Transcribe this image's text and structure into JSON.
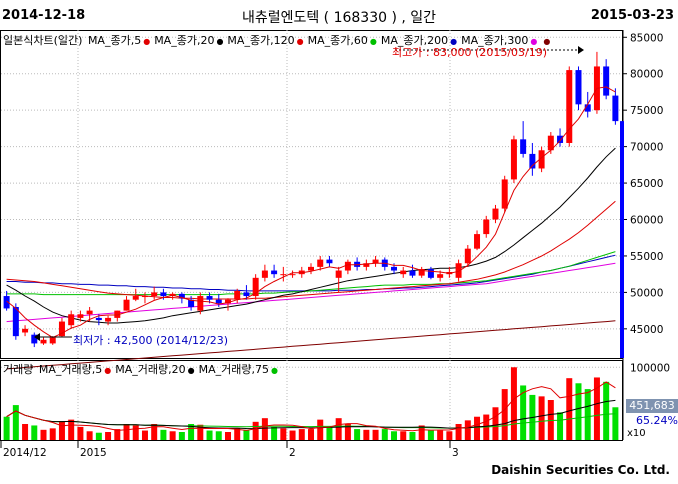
{
  "header": {
    "start_date": "2014-12-18",
    "title": "내츄럴엔도텍 ( 168330 ) , 일간",
    "end_date": "2015-03-23"
  },
  "price_legend": {
    "label": "일본식차트(일간)",
    "items": [
      {
        "label": "MA_종가,5",
        "color": "#e00000"
      },
      {
        "label": "MA_종가,20",
        "color": "#000000"
      },
      {
        "label": "MA_종가,120",
        "color": "#e00000"
      },
      {
        "label": "MA_종가,60",
        "color": "#00c000"
      },
      {
        "label": "MA_종가,200",
        "color": "#0000c0"
      },
      {
        "label": "MA_종가,300",
        "color": "#e000e0"
      },
      {
        "label": "",
        "color": "#800000"
      }
    ]
  },
  "volume_legend": {
    "label": "거래량",
    "items": [
      {
        "label": "MA_거래량,5",
        "color": "#e00000"
      },
      {
        "label": "MA_거래량,20",
        "color": "#000000"
      },
      {
        "label": "MA_거래량,75",
        "color": "#00c000"
      }
    ]
  },
  "annotations": {
    "high": "최고가 : 83,000 (2015/03/19)",
    "low": "최저가 : 42,500 (2014/12/23)"
  },
  "volume_readout": {
    "value": "451,683",
    "percent": "65.24%",
    "unit": "x10"
  },
  "footer": "Daishin Securities Co. Ltd.",
  "colors": {
    "up": "#ff0000",
    "down": "#0000ff",
    "vol_up": "#ff0000",
    "vol_down": "#00e000",
    "axis_bar": "#0000ff"
  },
  "chart_data": {
    "type": "candlestick",
    "x_ticks": [
      "2014/12",
      "2015",
      "2",
      "3"
    ],
    "y_ticks": [
      45000,
      50000,
      55000,
      60000,
      65000,
      70000,
      75000,
      80000,
      85000
    ],
    "ylim": [
      41000,
      86000
    ],
    "volume_ticks": [
      100000
    ],
    "volume_max": 110000,
    "candles": [
      {
        "o": 49500,
        "h": 50200,
        "l": 47500,
        "c": 47800,
        "v": 32000
      },
      {
        "o": 48000,
        "h": 48500,
        "l": 43500,
        "c": 44000,
        "v": 48000
      },
      {
        "o": 44500,
        "h": 45500,
        "l": 44000,
        "c": 45000,
        "v": 22000
      },
      {
        "o": 44200,
        "h": 44500,
        "l": 42500,
        "c": 43000,
        "v": 20000
      },
      {
        "o": 43000,
        "h": 43800,
        "l": 42800,
        "c": 43500,
        "v": 14000
      },
      {
        "o": 43000,
        "h": 44000,
        "l": 42800,
        "c": 43800,
        "v": 16000
      },
      {
        "o": 44000,
        "h": 46500,
        "l": 43900,
        "c": 46000,
        "v": 25000
      },
      {
        "o": 45500,
        "h": 47500,
        "l": 45000,
        "c": 47000,
        "v": 28000
      },
      {
        "o": 46500,
        "h": 47500,
        "l": 46000,
        "c": 47000,
        "v": 18000
      },
      {
        "o": 47000,
        "h": 48000,
        "l": 46000,
        "c": 47500,
        "v": 12000
      },
      {
        "o": 46500,
        "h": 47000,
        "l": 45500,
        "c": 46200,
        "v": 10000
      },
      {
        "o": 46000,
        "h": 46800,
        "l": 45500,
        "c": 46500,
        "v": 11000
      },
      {
        "o": 46500,
        "h": 47500,
        "l": 46000,
        "c": 47500,
        "v": 15000
      },
      {
        "o": 47500,
        "h": 49500,
        "l": 47500,
        "c": 49000,
        "v": 22000
      },
      {
        "o": 49000,
        "h": 50500,
        "l": 48800,
        "c": 49500,
        "v": 20000
      },
      {
        "o": 49500,
        "h": 50000,
        "l": 48500,
        "c": 49500,
        "v": 13000
      },
      {
        "o": 49500,
        "h": 50800,
        "l": 49000,
        "c": 50000,
        "v": 22000
      },
      {
        "o": 50000,
        "h": 50500,
        "l": 49000,
        "c": 49500,
        "v": 14000
      },
      {
        "o": 49500,
        "h": 50000,
        "l": 49000,
        "c": 49800,
        "v": 12000
      },
      {
        "o": 49800,
        "h": 50000,
        "l": 48500,
        "c": 49200,
        "v": 11000
      },
      {
        "o": 49000,
        "h": 49500,
        "l": 47500,
        "c": 48000,
        "v": 22000
      },
      {
        "o": 47500,
        "h": 50000,
        "l": 47000,
        "c": 49500,
        "v": 21000
      },
      {
        "o": 49500,
        "h": 50000,
        "l": 48500,
        "c": 49000,
        "v": 13000
      },
      {
        "o": 49000,
        "h": 49800,
        "l": 48000,
        "c": 48500,
        "v": 12000
      },
      {
        "o": 48500,
        "h": 49200,
        "l": 47500,
        "c": 49000,
        "v": 11000
      },
      {
        "o": 49000,
        "h": 50500,
        "l": 48500,
        "c": 50200,
        "v": 16000
      },
      {
        "o": 50000,
        "h": 51000,
        "l": 49000,
        "c": 49500,
        "v": 14000
      },
      {
        "o": 49500,
        "h": 52500,
        "l": 49000,
        "c": 52000,
        "v": 25000
      },
      {
        "o": 52000,
        "h": 53800,
        "l": 51500,
        "c": 53000,
        "v": 30000
      },
      {
        "o": 53000,
        "h": 53800,
        "l": 52000,
        "c": 52500,
        "v": 18000
      },
      {
        "o": 52500,
        "h": 53500,
        "l": 51500,
        "c": 52500,
        "v": 16000
      },
      {
        "o": 52500,
        "h": 53000,
        "l": 52000,
        "c": 52500,
        "v": 13000
      },
      {
        "o": 52500,
        "h": 53500,
        "l": 52000,
        "c": 53000,
        "v": 15000
      },
      {
        "o": 53000,
        "h": 54000,
        "l": 52500,
        "c": 53500,
        "v": 15000
      },
      {
        "o": 53500,
        "h": 55000,
        "l": 53000,
        "c": 54500,
        "v": 28000
      },
      {
        "o": 54500,
        "h": 55000,
        "l": 53500,
        "c": 54000,
        "v": 18000
      },
      {
        "o": 52000,
        "h": 53500,
        "l": 50000,
        "c": 53000,
        "v": 30000
      },
      {
        "o": 53000,
        "h": 54500,
        "l": 52500,
        "c": 54200,
        "v": 22000
      },
      {
        "o": 54200,
        "h": 54800,
        "l": 53000,
        "c": 53500,
        "v": 15000
      },
      {
        "o": 53500,
        "h": 54500,
        "l": 53000,
        "c": 54000,
        "v": 14000
      },
      {
        "o": 54000,
        "h": 55000,
        "l": 53500,
        "c": 54500,
        "v": 14000
      },
      {
        "o": 54500,
        "h": 54800,
        "l": 53000,
        "c": 53500,
        "v": 15000
      },
      {
        "o": 53500,
        "h": 54000,
        "l": 52500,
        "c": 53000,
        "v": 12000
      },
      {
        "o": 52500,
        "h": 53500,
        "l": 52000,
        "c": 53000,
        "v": 12000
      },
      {
        "o": 53000,
        "h": 53800,
        "l": 52000,
        "c": 52300,
        "v": 11000
      },
      {
        "o": 52300,
        "h": 53500,
        "l": 52000,
        "c": 53200,
        "v": 20000
      },
      {
        "o": 53200,
        "h": 53500,
        "l": 51800,
        "c": 52000,
        "v": 13000
      },
      {
        "o": 52000,
        "h": 53000,
        "l": 51500,
        "c": 52500,
        "v": 13000
      },
      {
        "o": 52500,
        "h": 53500,
        "l": 52000,
        "c": 52800,
        "v": 12000
      },
      {
        "o": 52000,
        "h": 54500,
        "l": 51500,
        "c": 54000,
        "v": 22000
      },
      {
        "o": 54000,
        "h": 56500,
        "l": 53500,
        "c": 56000,
        "v": 27000
      },
      {
        "o": 56000,
        "h": 58500,
        "l": 55800,
        "c": 58000,
        "v": 32000
      },
      {
        "o": 58000,
        "h": 60500,
        "l": 57500,
        "c": 60000,
        "v": 35000
      },
      {
        "o": 60000,
        "h": 62000,
        "l": 59500,
        "c": 61500,
        "v": 45000
      },
      {
        "o": 61500,
        "h": 66000,
        "l": 61000,
        "c": 65500,
        "v": 70000
      },
      {
        "o": 65500,
        "h": 71500,
        "l": 65000,
        "c": 71000,
        "v": 100000
      },
      {
        "o": 71000,
        "h": 73500,
        "l": 68500,
        "c": 69000,
        "v": 75000
      },
      {
        "o": 69000,
        "h": 70500,
        "l": 66000,
        "c": 67000,
        "v": 62000
      },
      {
        "o": 67000,
        "h": 70000,
        "l": 66500,
        "c": 69500,
        "v": 60000
      },
      {
        "o": 69500,
        "h": 72000,
        "l": 69000,
        "c": 71500,
        "v": 55000
      },
      {
        "o": 71500,
        "h": 72500,
        "l": 70000,
        "c": 70500,
        "v": 38000
      },
      {
        "o": 70500,
        "h": 81000,
        "l": 70000,
        "c": 80500,
        "v": 85000
      },
      {
        "o": 80500,
        "h": 81000,
        "l": 75000,
        "c": 75800,
        "v": 78000
      },
      {
        "o": 75800,
        "h": 77500,
        "l": 74000,
        "c": 74800,
        "v": 70000
      },
      {
        "o": 75000,
        "h": 83000,
        "l": 74500,
        "c": 81000,
        "v": 86000
      },
      {
        "o": 81000,
        "h": 82000,
        "l": 76500,
        "c": 77000,
        "v": 80000
      },
      {
        "o": 77000,
        "h": 78000,
        "l": 73000,
        "c": 73500,
        "v": 45000
      }
    ],
    "ma5": [
      48800,
      47800,
      46500,
      45500,
      44600,
      43800,
      44400,
      45100,
      45500,
      46300,
      46800,
      46900,
      46900,
      47300,
      47700,
      48300,
      48900,
      49300,
      49600,
      49300,
      48900,
      48800,
      48700,
      48400,
      48600,
      49000,
      49200,
      49900,
      50800,
      51500,
      52100,
      52700,
      52700,
      52900,
      53200,
      53500,
      53300,
      53800,
      53800,
      53900,
      54000,
      54000,
      53700,
      53700,
      53400,
      53000,
      52900,
      52800,
      52600,
      52900,
      53700,
      54900,
      56200,
      58000,
      61000,
      64000,
      65900,
      67400,
      68500,
      69500,
      70800,
      72400,
      73800,
      75800,
      78000,
      78200,
      77500
    ],
    "ma20": [
      51000,
      50300,
      49500,
      48800,
      48000,
      47300,
      46800,
      46500,
      46200,
      46000,
      45900,
      45800,
      45800,
      45900,
      46000,
      46100,
      46300,
      46500,
      46800,
      47000,
      47200,
      47400,
      47600,
      47800,
      48000,
      48200,
      48400,
      48700,
      49000,
      49300,
      49600,
      49800,
      50100,
      50400,
      50700,
      51000,
      51300,
      51600,
      51800,
      52000,
      52200,
      52400,
      52600,
      52800,
      53000,
      53100,
      53200,
      53300,
      53300,
      53400,
      53600,
      53900,
      54300,
      54800,
      55600,
      56500,
      57500,
      58500,
      59500,
      60600,
      61700,
      63000,
      64300,
      65700,
      67200,
      68600,
      69800
    ],
    "ma60": [
      49800,
      49800,
      49800,
      49800,
      49700,
      49700,
      49700,
      49700,
      49700,
      49700,
      49700,
      49700,
      49700,
      49700,
      49700,
      49700,
      49700,
      49700,
      49700,
      49700,
      49700,
      49700,
      49700,
      49700,
      49800,
      49800,
      49800,
      49800,
      49900,
      49900,
      50000,
      50100,
      50100,
      50200,
      50300,
      50400,
      50500,
      50600,
      50700,
      50800,
      50900,
      51000,
      51000,
      51000,
      51100,
      51100,
      51100,
      51200,
      51200,
      51300,
      51400,
      51500,
      51600,
      51800,
      52000,
      52200,
      52400,
      52600,
      52800,
      53000,
      53300,
      53600,
      54000,
      54400,
      54800,
      55200,
      55600
    ],
    "ma120": [
      51800,
      51700,
      51600,
      51500,
      51300,
      51100,
      50900,
      50700,
      50500,
      50300,
      50100,
      49900,
      49800,
      49700,
      49600,
      49500,
      49400,
      49300,
      49300,
      49200,
      49200,
      49100,
      49100,
      49100,
      49100,
      49100,
      49100,
      49200,
      49200,
      49300,
      49400,
      49500,
      49600,
      49700,
      49800,
      49900,
      50000,
      50100,
      50200,
      50300,
      50400,
      50500,
      50600,
      50700,
      50800,
      50900,
      51000,
      51100,
      51200,
      51400,
      51600,
      51800,
      52100,
      52400,
      52800,
      53300,
      53800,
      54400,
      55000,
      55700,
      56500,
      57300,
      58200,
      59200,
      60300,
      61400,
      62500
    ],
    "ma200": [
      51500,
      51500,
      51400,
      51400,
      51300,
      51300,
      51200,
      51200,
      51100,
      51100,
      51000,
      51000,
      50900,
      50900,
      50800,
      50800,
      50700,
      50700,
      50600,
      50600,
      50500,
      50500,
      50400,
      50400,
      50300,
      50300,
      50200,
      50200,
      50200,
      50200,
      50200,
      50200,
      50200,
      50200,
      50200,
      50200,
      50300,
      50300,
      50300,
      50400,
      50400,
      50500,
      50500,
      50600,
      50600,
      50700,
      50800,
      50900,
      51000,
      51100,
      51200,
      51300,
      51500,
      51700,
      51900,
      52100,
      52300,
      52500,
      52800,
      53000,
      53300,
      53600,
      53900,
      54200,
      54500,
      54800,
      55100
    ],
    "ma300": [
      46000,
      46100,
      46200,
      46300,
      46400,
      46500,
      46600,
      46700,
      46800,
      46900,
      47000,
      47100,
      47200,
      47300,
      47400,
      47500,
      47600,
      47700,
      47800,
      47900,
      48000,
      48100,
      48200,
      48300,
      48400,
      48500,
      48600,
      48700,
      48800,
      48900,
      49000,
      49100,
      49200,
      49300,
      49400,
      49500,
      49600,
      49700,
      49800,
      49900,
      50000,
      50100,
      50200,
      50300,
      50400,
      50500,
      50600,
      50700,
      50800,
      50900,
      51000,
      51100,
      51200,
      51400,
      51600,
      51800,
      52000,
      52200,
      52400,
      52600,
      52800,
      53000,
      53200,
      53400,
      53600,
      53800,
      54000
    ],
    "ma_extra": [
      39500,
      39600,
      39700,
      39800,
      39900,
      40000,
      40100,
      40200,
      40300,
      40400,
      40500,
      40600,
      40700,
      40800,
      40900,
      41000,
      41100,
      41200,
      41300,
      41400,
      41500,
      41600,
      41700,
      41800,
      41900,
      42000,
      42100,
      42200,
      42300,
      42400,
      42500,
      42600,
      42700,
      42800,
      42900,
      43000,
      43100,
      43200,
      43300,
      43400,
      43500,
      43600,
      43700,
      43800,
      43900,
      44000,
      44100,
      44200,
      44300,
      44400,
      44500,
      44600,
      44700,
      44800,
      44900,
      45000,
      45100,
      45200,
      45300,
      45400,
      45500,
      45600,
      45700,
      45800,
      45900,
      46000,
      46100
    ]
  }
}
